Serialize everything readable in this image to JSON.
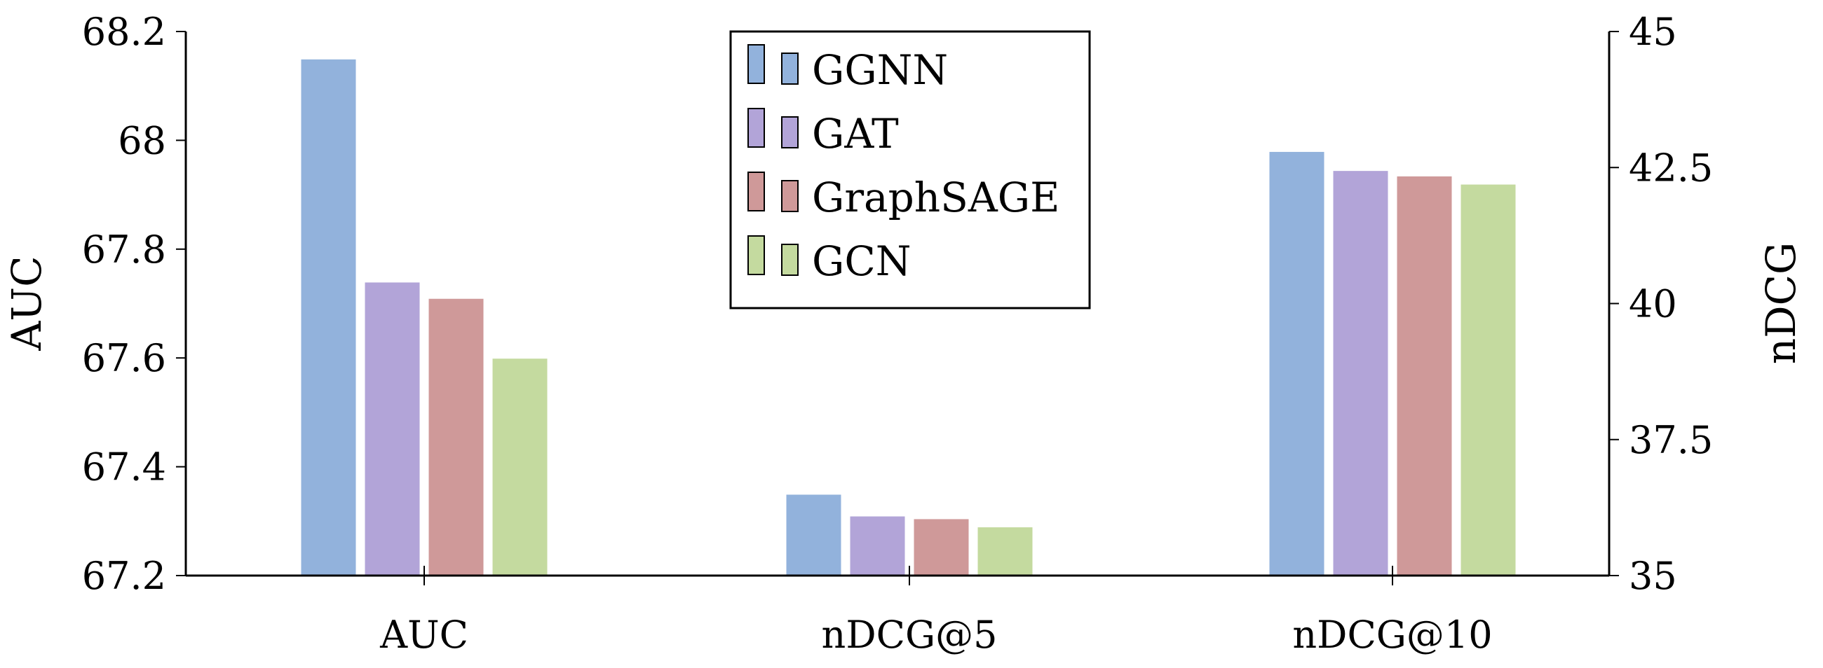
{
  "chart_data": {
    "type": "bar",
    "categories": [
      "AUC",
      "nDCG@5",
      "nDCG@10"
    ],
    "left_axis": {
      "label": "AUC",
      "ylim": [
        67.2,
        68.2
      ],
      "ticks": [
        67.2,
        67.4,
        67.6,
        67.8,
        68,
        68.2
      ],
      "tick_labels": [
        "67.2",
        "67.4",
        "67.6",
        "67.8",
        "68",
        "68.2"
      ]
    },
    "right_axis": {
      "label": "nDCG",
      "ylim": [
        35,
        45
      ],
      "ticks": [
        35,
        37.5,
        40,
        42.5,
        45
      ],
      "tick_labels": [
        "35",
        "37.5",
        "40",
        "42.5",
        "45"
      ]
    },
    "series": [
      {
        "name": "GGNN",
        "color": "#92b2dc",
        "values": [
          68.15,
          36.5,
          42.8
        ]
      },
      {
        "name": "GAT",
        "color": "#b2a4d8",
        "values": [
          67.74,
          36.1,
          42.45
        ]
      },
      {
        "name": "GraphSAGE",
        "color": "#cf9999",
        "values": [
          67.71,
          36.05,
          42.35
        ]
      },
      {
        "name": "GCN",
        "color": "#c4da9f",
        "values": [
          67.6,
          35.9,
          42.2
        ]
      }
    ],
    "category_axis": [
      "left",
      "right",
      "right"
    ],
    "legend_position": "top-center",
    "grid": false
  }
}
